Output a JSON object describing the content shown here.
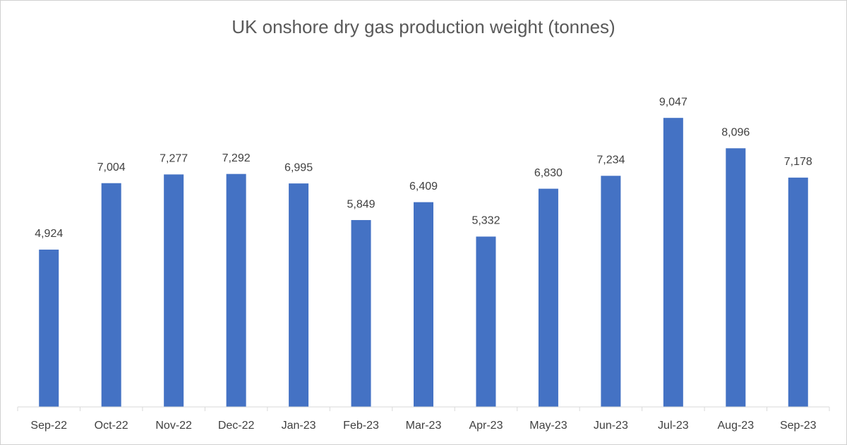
{
  "chart_data": {
    "type": "bar",
    "title": "UK onshore dry gas production weight (tonnes)",
    "categories": [
      "Sep-22",
      "Oct-22",
      "Nov-22",
      "Dec-22",
      "Jan-23",
      "Feb-23",
      "Mar-23",
      "Apr-23",
      "May-23",
      "Jun-23",
      "Jul-23",
      "Aug-23",
      "Sep-23"
    ],
    "values": [
      4924,
      7004,
      7277,
      7292,
      6995,
      5849,
      6409,
      5332,
      6830,
      7234,
      9047,
      8096,
      7178
    ],
    "value_labels": [
      "4,924",
      "7,004",
      "7,277",
      "7,292",
      "6,995",
      "5,849",
      "6,409",
      "5,332",
      "6,830",
      "7,234",
      "9,047",
      "8,096",
      "7,178"
    ],
    "color": "#4472c4",
    "ylim": [
      0,
      10000
    ]
  }
}
